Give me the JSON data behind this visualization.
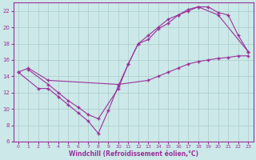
{
  "bg_color": "#cce8e8",
  "line_color": "#993399",
  "grid_color": "#aacccc",
  "xlabel": "Windchill (Refroidissement éolien,°C)",
  "xlim": [
    -0.5,
    23.5
  ],
  "ylim": [
    6,
    23
  ],
  "yticks": [
    6,
    8,
    10,
    12,
    14,
    16,
    18,
    20,
    22
  ],
  "xticks": [
    0,
    1,
    2,
    3,
    4,
    5,
    6,
    7,
    8,
    9,
    10,
    11,
    12,
    13,
    14,
    15,
    16,
    17,
    18,
    19,
    20,
    21,
    22,
    23
  ],
  "line1_x": [
    0,
    1,
    3,
    10,
    13,
    14,
    15,
    16,
    17,
    18,
    19,
    20,
    21,
    22,
    23
  ],
  "line1_y": [
    14.5,
    15.0,
    13.5,
    13.0,
    13.5,
    14.0,
    14.5,
    15.0,
    15.5,
    15.8,
    16.0,
    16.2,
    16.3,
    16.5,
    16.5
  ],
  "line2_x": [
    0,
    2,
    3,
    4,
    5,
    6,
    7,
    8,
    9,
    10,
    11,
    12,
    13,
    14,
    15,
    16,
    17,
    18,
    19,
    20,
    21,
    22,
    23
  ],
  "line2_y": [
    14.5,
    12.5,
    12.5,
    11.5,
    10.5,
    9.5,
    8.5,
    7.0,
    9.8,
    12.8,
    15.5,
    18.0,
    18.5,
    19.8,
    20.5,
    21.5,
    22.0,
    22.5,
    22.5,
    21.8,
    21.5,
    19.0,
    17.0
  ],
  "line3_x": [
    1,
    3,
    4,
    5,
    6,
    7,
    8,
    10,
    11,
    12,
    13,
    14,
    15,
    16,
    17,
    18,
    20,
    23
  ],
  "line3_y": [
    14.8,
    13.0,
    12.0,
    11.0,
    10.2,
    9.3,
    8.8,
    12.5,
    15.5,
    18.0,
    19.0,
    20.0,
    21.0,
    21.5,
    22.2,
    22.5,
    21.5,
    17.0
  ]
}
